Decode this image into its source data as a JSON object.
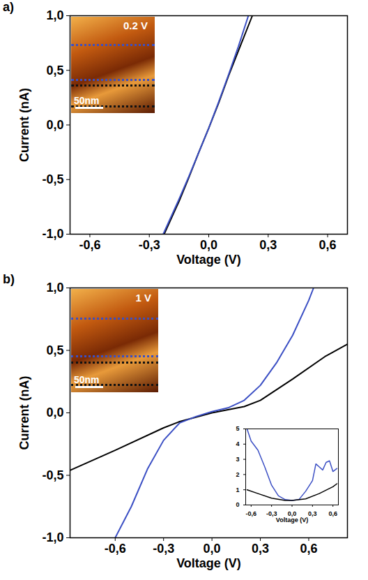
{
  "chart_data": [
    {
      "type": "line",
      "panel_label": "a)",
      "image_labels": [
        "0.2 V",
        "50nm"
      ],
      "x_label": "Voltage (V)",
      "y_label": "Current (nA)",
      "xlim": [
        -0.7,
        0.7
      ],
      "xticks": [
        {
          "value": -0.6,
          "label": "-0,6"
        },
        {
          "value": -0.3,
          "label": "-0,3"
        },
        {
          "value": 0,
          "label": "0,0"
        },
        {
          "value": 0.3,
          "label": "0,3"
        },
        {
          "value": 0.6,
          "label": "0,6"
        }
      ],
      "ylim": [
        -1,
        1
      ],
      "yticks": [
        {
          "value": -1,
          "label": "-1,0"
        },
        {
          "value": -0.5,
          "label": "-0,5"
        },
        {
          "value": 0,
          "label": "0,0"
        },
        {
          "value": 0.5,
          "label": "0,5"
        },
        {
          "value": 1,
          "label": "1,0"
        }
      ],
      "series": [
        {
          "color": "#000000",
          "x": [
            -0.225,
            -0.15,
            -0.1,
            -0.05,
            0,
            0.05,
            0.1,
            0.15,
            0.22
          ],
          "values": [
            -1,
            -0.7,
            -0.48,
            -0.25,
            -0.03,
            0.2,
            0.45,
            0.68,
            1
          ]
        },
        {
          "color": "#3b4fc4",
          "x": [
            -0.23,
            -0.15,
            -0.1,
            -0.05,
            0,
            0.05,
            0.1,
            0.15,
            0.2
          ],
          "values": [
            -1,
            -0.68,
            -0.47,
            -0.25,
            -0.03,
            0.21,
            0.46,
            0.72,
            1
          ]
        }
      ]
    },
    {
      "type": "line",
      "panel_label": "b)",
      "image_labels": [
        "1 V",
        "50nm"
      ],
      "x_label": "Voltage (V)",
      "y_label": "Current (nA)",
      "xlim": [
        -0.88,
        0.84
      ],
      "xticks": [
        {
          "value": -0.6,
          "label": "-0,6"
        },
        {
          "value": -0.3,
          "label": "-0,3"
        },
        {
          "value": 0,
          "label": "0,0"
        },
        {
          "value": 0.3,
          "label": "0,3"
        },
        {
          "value": 0.6,
          "label": "0,6"
        }
      ],
      "ylim": [
        -1,
        1
      ],
      "yticks": [
        {
          "value": -1,
          "label": "-1,0"
        },
        {
          "value": -0.5,
          "label": "-0,5"
        },
        {
          "value": 0,
          "label": "0,0"
        },
        {
          "value": 0.5,
          "label": "0,5"
        },
        {
          "value": 1,
          "label": "1,0"
        }
      ],
      "series": [
        {
          "color": "#000000",
          "x": [
            -0.88,
            -0.6,
            -0.3,
            -0.2,
            0,
            0.2,
            0.3,
            0.5,
            0.7,
            0.84
          ],
          "values": [
            -0.46,
            -0.3,
            -0.12,
            -0.07,
            0,
            0.05,
            0.1,
            0.27,
            0.45,
            0.55
          ]
        },
        {
          "color": "#3b4fc4",
          "x": [
            -0.6,
            -0.5,
            -0.4,
            -0.3,
            -0.2,
            -0.1,
            0,
            0.1,
            0.2,
            0.3,
            0.4,
            0.5,
            0.6,
            0.63
          ],
          "values": [
            -1,
            -0.75,
            -0.45,
            -0.22,
            -0.08,
            -0.03,
            0.01,
            0.04,
            0.1,
            0.22,
            0.4,
            0.62,
            0.9,
            1
          ]
        }
      ]
    },
    {
      "type": "line",
      "x_label": "Voltage (V)",
      "xlim": [
        -0.68,
        0.68
      ],
      "xticks": [
        {
          "value": -0.6,
          "label": "-0,6"
        },
        {
          "value": -0.3,
          "label": "-0,3"
        },
        {
          "value": 0,
          "label": "0,0"
        },
        {
          "value": 0.3,
          "label": "0,3"
        },
        {
          "value": 0.6,
          "label": "0,6"
        }
      ],
      "ylim": [
        0,
        5
      ],
      "yticks": [
        0,
        1,
        2,
        3,
        4,
        5
      ],
      "series": [
        {
          "color": "#3b4fc4",
          "x": [
            -0.66,
            -0.6,
            -0.5,
            -0.4,
            -0.3,
            -0.2,
            -0.1,
            0,
            0.1,
            0.2,
            0.3,
            0.35,
            0.4,
            0.45,
            0.5,
            0.55,
            0.6,
            0.66
          ],
          "values": [
            5,
            4.2,
            3.6,
            2.5,
            1.3,
            0.6,
            0.35,
            0.3,
            0.35,
            0.9,
            1.6,
            2.7,
            2.5,
            2.3,
            2.8,
            2.9,
            2.2,
            2.4
          ]
        },
        {
          "color": "#000000",
          "x": [
            -0.66,
            -0.5,
            -0.3,
            -0.1,
            0,
            0.2,
            0.4,
            0.6,
            0.66
          ],
          "values": [
            1,
            0.75,
            0.45,
            0.3,
            0.3,
            0.4,
            0.75,
            1.2,
            1.4
          ]
        }
      ]
    }
  ]
}
